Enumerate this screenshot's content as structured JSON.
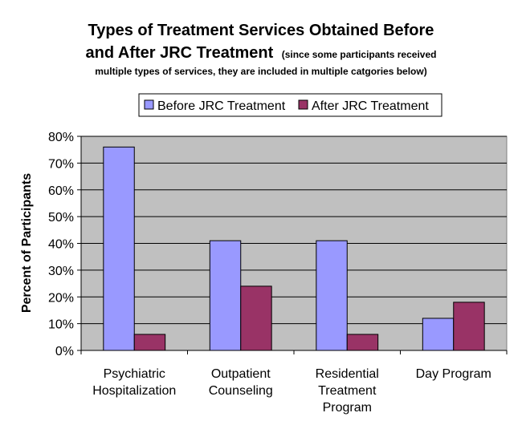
{
  "chart_data": {
    "type": "bar",
    "title_line1": "Types of Treatment Services Obtained Before",
    "title_line2": "and After JRC Treatment",
    "title_note": "(since some participants received",
    "title_line3": "multiple types of services, they are included in multiple catgories below)",
    "ylabel": "Percent of Participants",
    "xlabel": "",
    "ylim": [
      0,
      80
    ],
    "y_ticks": [
      0,
      10,
      20,
      30,
      40,
      50,
      60,
      70,
      80
    ],
    "y_tick_labels": [
      "0%",
      "10%",
      "20%",
      "30%",
      "40%",
      "50%",
      "60%",
      "70%",
      "80%"
    ],
    "grid": true,
    "legend_position": "top",
    "categories": [
      [
        "Psychiatric",
        "Hospitalization"
      ],
      [
        "Outpatient",
        "Counseling"
      ],
      [
        "Residential",
        "Treatment",
        "Program"
      ],
      [
        "Day Program"
      ]
    ],
    "series": [
      {
        "name": "Before JRC Treatment",
        "color": "#9999ff",
        "values": [
          76,
          41,
          41,
          12
        ]
      },
      {
        "name": "After JRC Treatment",
        "color": "#993366",
        "values": [
          6,
          24,
          6,
          18
        ]
      }
    ],
    "plot_background": "#c0c0c0"
  }
}
